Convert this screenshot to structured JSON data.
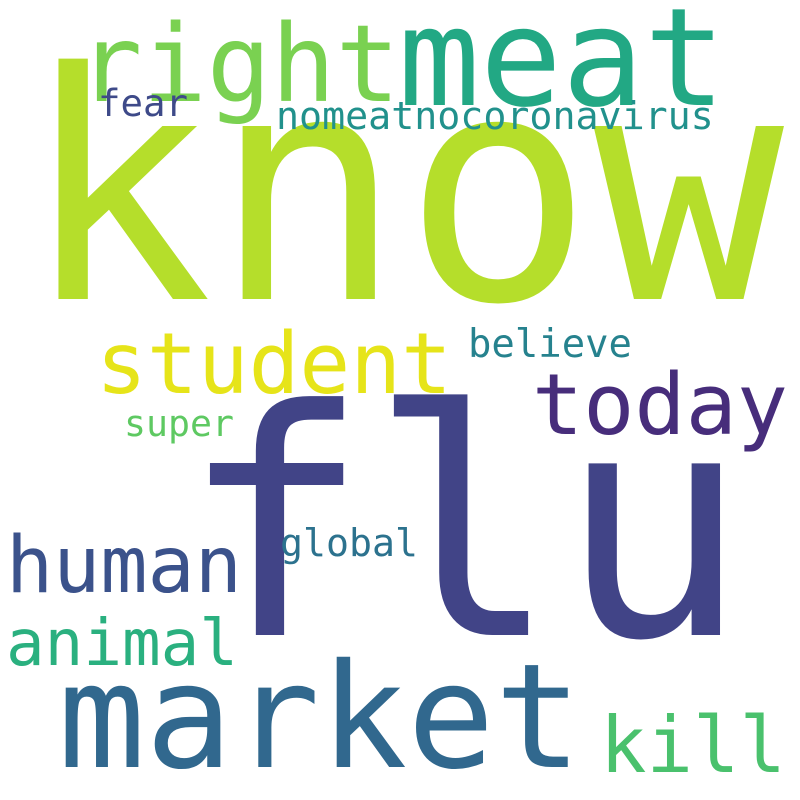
{
  "words": {
    "know": {
      "text": "know",
      "color": "#b5de2b"
    },
    "flu": {
      "text": "flu",
      "color": "#414487"
    },
    "meat": {
      "text": "meat",
      "color": "#22a884"
    },
    "right": {
      "text": "right",
      "color": "#7ad151"
    },
    "student": {
      "text": "student",
      "color": "#e6e419"
    },
    "today": {
      "text": "today",
      "color": "#472d7b"
    },
    "market": {
      "text": "market",
      "color": "#31688e"
    },
    "human": {
      "text": "human",
      "color": "#3b528b"
    },
    "animal": {
      "text": "animal",
      "color": "#2ab07f"
    },
    "kill": {
      "text": "kill",
      "color": "#4ac16d"
    },
    "nomeatnocoronavirus": {
      "text": "nomeatnocoronavirus",
      "color": "#21918c"
    },
    "fear": {
      "text": "fear",
      "color": "#3e4a89"
    },
    "believe": {
      "text": "believe",
      "color": "#26828e"
    },
    "super": {
      "text": "super",
      "color": "#5ec962"
    },
    "global": {
      "text": "global",
      "color": "#2c728e"
    }
  }
}
